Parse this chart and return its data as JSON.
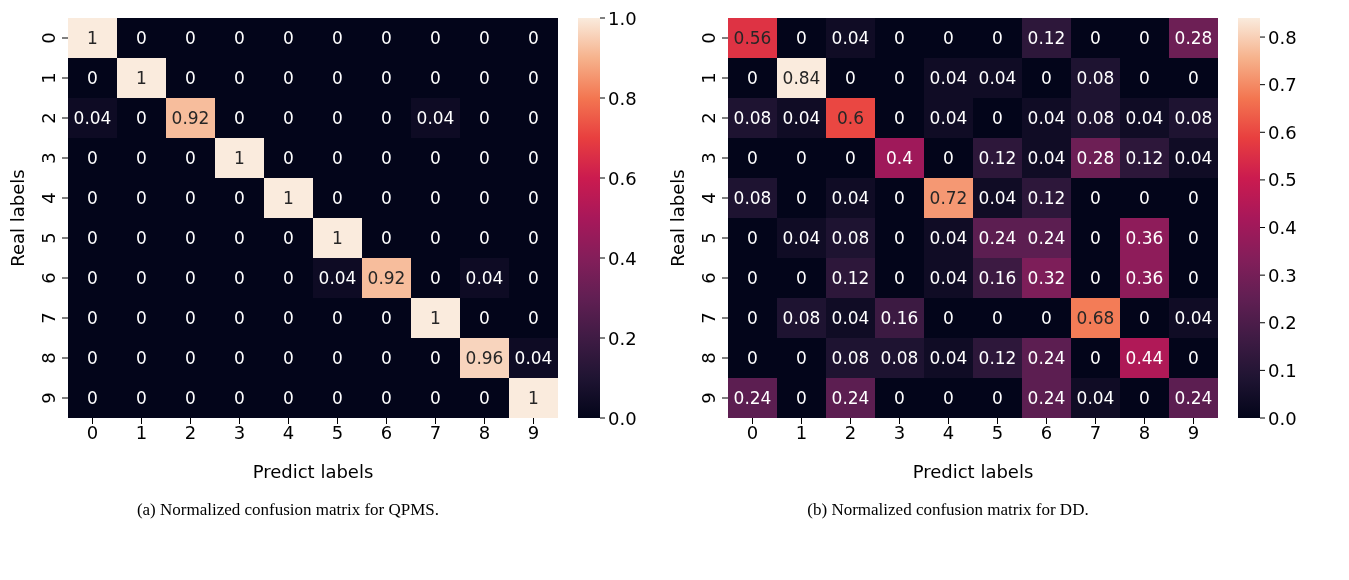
{
  "chart_data": [
    {
      "type": "heatmap",
      "title": "(a) Normalized confusion matrix for QPMS.",
      "xlabel": "Predict labels",
      "ylabel": "Real labels",
      "categories": [
        "0",
        "1",
        "2",
        "3",
        "4",
        "5",
        "6",
        "7",
        "8",
        "9"
      ],
      "y_categories": [
        "0",
        "1",
        "2",
        "3",
        "4",
        "5",
        "6",
        "7",
        "8",
        "9"
      ],
      "cells": [
        [
          1,
          0,
          0,
          0,
          0,
          0,
          0,
          0,
          0,
          0
        ],
        [
          0,
          1,
          0,
          0,
          0,
          0,
          0,
          0,
          0,
          0
        ],
        [
          0.04,
          0,
          0.92,
          0,
          0,
          0,
          0,
          0.04,
          0,
          0
        ],
        [
          0,
          0,
          0,
          1,
          0,
          0,
          0,
          0,
          0,
          0
        ],
        [
          0,
          0,
          0,
          0,
          1,
          0,
          0,
          0,
          0,
          0
        ],
        [
          0,
          0,
          0,
          0,
          0,
          1,
          0,
          0,
          0,
          0
        ],
        [
          0,
          0,
          0,
          0,
          0,
          0.04,
          0.92,
          0,
          0.04,
          0
        ],
        [
          0,
          0,
          0,
          0,
          0,
          0,
          0,
          1,
          0,
          0
        ],
        [
          0,
          0,
          0,
          0,
          0,
          0,
          0,
          0,
          0.96,
          0.04
        ],
        [
          0,
          0,
          0,
          0,
          0,
          0,
          0,
          0,
          0,
          1
        ]
      ],
      "clim": [
        0,
        1
      ],
      "cticks": [
        {
          "value": 0,
          "label": "0.0"
        },
        {
          "value": 0.2,
          "label": "0.2"
        },
        {
          "value": 0.4,
          "label": "0.4"
        },
        {
          "value": 0.6,
          "label": "0.6"
        },
        {
          "value": 0.8,
          "label": "0.8"
        },
        {
          "value": 1,
          "label": "1.0"
        }
      ],
      "data_labels": true
    },
    {
      "type": "heatmap",
      "title": "(b) Normalized confusion matrix for DD.",
      "xlabel": "Predict labels",
      "ylabel": "Real labels",
      "categories": [
        "0",
        "1",
        "2",
        "3",
        "4",
        "5",
        "6",
        "7",
        "8",
        "9"
      ],
      "y_categories": [
        "0",
        "1",
        "2",
        "3",
        "4",
        "5",
        "6",
        "7",
        "8",
        "9"
      ],
      "cells": [
        [
          0.56,
          0,
          0.04,
          0,
          0,
          0,
          0.12,
          0,
          0,
          0.28
        ],
        [
          0,
          0.84,
          0,
          0,
          0.04,
          0.04,
          0,
          0.08,
          0,
          0
        ],
        [
          0.08,
          0.04,
          0.6,
          0,
          0.04,
          0,
          0.04,
          0.08,
          0.04,
          0.08
        ],
        [
          0,
          0,
          0,
          0.4,
          0,
          0.12,
          0.04,
          0.28,
          0.12,
          0.04
        ],
        [
          0.08,
          0,
          0.04,
          0,
          0.72,
          0.04,
          0.12,
          0,
          0,
          0
        ],
        [
          0,
          0.04,
          0.08,
          0,
          0.04,
          0.24,
          0.24,
          0,
          0.36,
          0
        ],
        [
          0,
          0,
          0.12,
          0,
          0.04,
          0.16,
          0.32,
          0,
          0.36,
          0
        ],
        [
          0,
          0.08,
          0.04,
          0.16,
          0,
          0,
          0,
          0.68,
          0,
          0.04
        ],
        [
          0,
          0,
          0.08,
          0.08,
          0.04,
          0.12,
          0.24,
          0,
          0.44,
          0
        ],
        [
          0.24,
          0,
          0.24,
          0,
          0,
          0,
          0.24,
          0.04,
          0,
          0.24
        ]
      ],
      "clim": [
        0,
        0.84
      ],
      "cticks": [
        {
          "value": 0,
          "label": "0.0"
        },
        {
          "value": 0.1,
          "label": "0.1"
        },
        {
          "value": 0.2,
          "label": "0.2"
        },
        {
          "value": 0.3,
          "label": "0.3"
        },
        {
          "value": 0.4,
          "label": "0.4"
        },
        {
          "value": 0.5,
          "label": "0.5"
        },
        {
          "value": 0.6,
          "label": "0.6"
        },
        {
          "value": 0.7,
          "label": "0.7"
        },
        {
          "value": 0.8,
          "label": "0.8"
        }
      ],
      "data_labels": true
    }
  ]
}
